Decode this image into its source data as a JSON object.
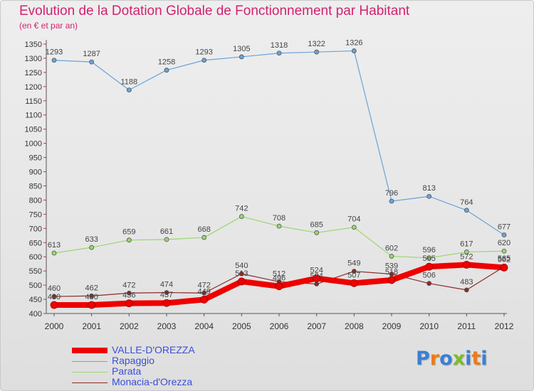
{
  "title": "Evolution de la Dotation Globale de Fonctionnement par Habitant",
  "subtitle": "(en € et par an)",
  "logo": {
    "letters": [
      "P",
      "r",
      "o",
      "x",
      "i",
      "t",
      "i"
    ],
    "colors": [
      "#3b7fd6",
      "#e97d1c",
      "#3b7fd6",
      "#7cbd27",
      "#3b7fd6",
      "#e97d1c",
      "#3b7fd6"
    ]
  },
  "chart_data": {
    "type": "line",
    "title": "Evolution de la Dotation Globale de Fonctionnement par Habitant",
    "subtitle": "(en € et par an)",
    "xlabel": "",
    "ylabel": "",
    "x": [
      "2000",
      "2001",
      "2002",
      "2003",
      "2004",
      "2005",
      "2006",
      "2007",
      "2008",
      "2009",
      "2010",
      "2011",
      "2012"
    ],
    "ylim": [
      400,
      1350
    ],
    "yticks": [
      400,
      450,
      500,
      550,
      600,
      650,
      700,
      750,
      800,
      850,
      900,
      950,
      1000,
      1050,
      1100,
      1150,
      1200,
      1250,
      1300,
      1350
    ],
    "grid": false,
    "legend_position": "bottom-left",
    "series": [
      {
        "name": "VALLE-D'OREZZA",
        "color": "#ee0000",
        "thick": true,
        "values": [
          430,
          430,
          436,
          437,
          449,
          513,
          496,
          524,
          507,
          518,
          565,
          572,
          562
        ],
        "labels": [
          "430",
          "430",
          "436",
          "437",
          "449",
          "513",
          "496",
          "524",
          "507",
          "518",
          "565",
          "572",
          "562"
        ]
      },
      {
        "name": "Rapaggio",
        "color": "#6aa3d8",
        "thick": false,
        "values": [
          1293,
          1287,
          1188,
          1258,
          1293,
          1305,
          1318,
          1322,
          1326,
          796,
          813,
          764,
          677
        ],
        "labels": [
          "1293",
          "1287",
          "1188",
          "1258",
          "1293",
          "1305",
          "1318",
          "1322",
          "1326",
          "796",
          "813",
          "764",
          "677"
        ]
      },
      {
        "name": "Parata",
        "color": "#9ad66e",
        "thick": false,
        "values": [
          613,
          633,
          659,
          661,
          668,
          742,
          708,
          685,
          704,
          602,
          596,
          617,
          620
        ],
        "labels": [
          "613",
          "633",
          "659",
          "661",
          "668",
          "742",
          "708",
          "685",
          "704",
          "602",
          "596",
          "617",
          "620"
        ]
      },
      {
        "name": "Monacia-d'Orezza",
        "color": "#8b2a2a",
        "thick": false,
        "values": [
          460,
          462,
          472,
          474,
          472,
          540,
          512,
          504,
          549,
          539,
          506,
          483,
          565
        ],
        "labels": [
          "460",
          "462",
          "472",
          "474",
          "472",
          "540",
          "512",
          "504",
          "549",
          "539",
          "506",
          "483",
          "565"
        ]
      }
    ]
  }
}
